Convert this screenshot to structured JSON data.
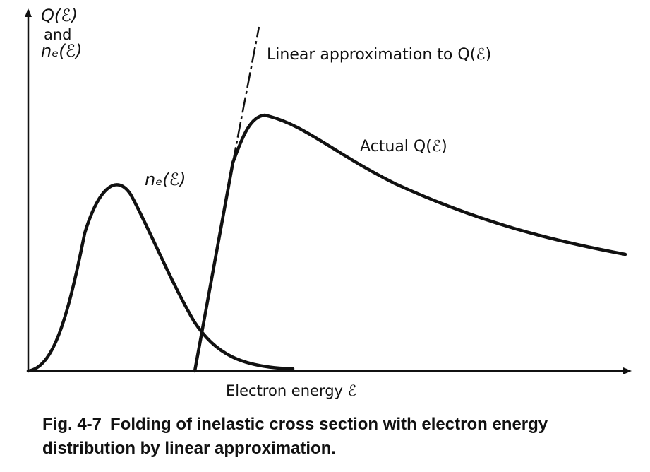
{
  "y_axis_label": {
    "line1": "Q(ℰ)",
    "line2": "and",
    "line3": "nₑ(ℰ)"
  },
  "x_axis_label": "Electron energy ℰ",
  "labels": {
    "linear": "Linear approximation to Q(ℰ)",
    "actual": "Actual Q(ℰ)",
    "ne": "nₑ(ℰ)"
  },
  "caption": {
    "fig": "Fig. 4-7",
    "text": "Folding of inelastic cross section with electron energy distribution by linear approximation."
  },
  "colors": {
    "ink": "#111111"
  }
}
